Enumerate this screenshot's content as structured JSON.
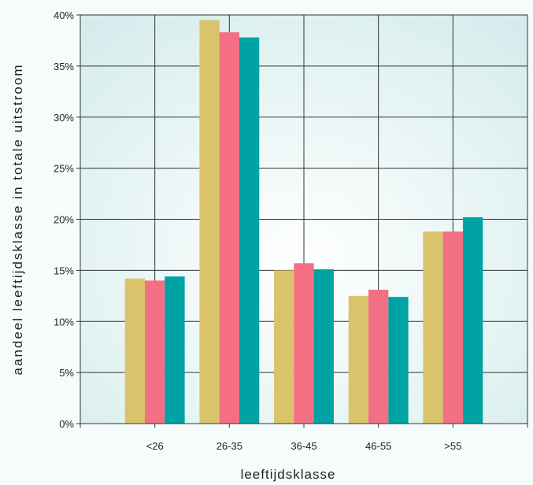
{
  "chart_data": {
    "type": "bar",
    "title": "",
    "xlabel": "leeftijdsklasse",
    "ylabel": "aandeel leeftijdsklasse in totale uitstroom",
    "categories": [
      "<26",
      "26-35",
      "36-45",
      "46-55",
      ">55"
    ],
    "series": [
      {
        "color": "#d9c36b",
        "values": [
          14.2,
          39.5,
          15.0,
          12.5,
          18.8
        ]
      },
      {
        "color": "#f36f84",
        "values": [
          14.0,
          38.3,
          15.7,
          13.1,
          18.8
        ]
      },
      {
        "color": "#00a3a3",
        "values": [
          14.4,
          37.8,
          15.1,
          12.4,
          20.2
        ]
      }
    ],
    "ylim": [
      0,
      40
    ],
    "yticks": [
      0,
      5,
      10,
      15,
      20,
      25,
      30,
      35,
      40
    ],
    "ytick_labels": [
      "0%",
      "5%",
      "10%",
      "15%",
      "20%",
      "25%",
      "30%",
      "35%",
      "40%"
    ],
    "grid": true,
    "legend": "none",
    "colors": {
      "plot_background": "#e3f2f2",
      "grid": "#333333"
    }
  }
}
